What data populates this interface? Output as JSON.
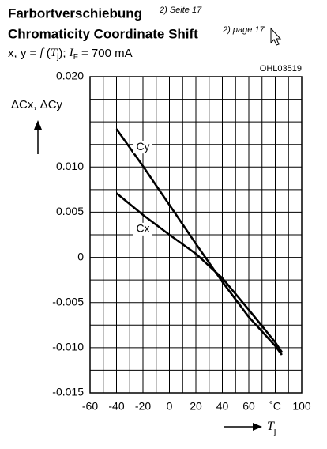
{
  "chart_data": {
    "type": "line",
    "title": [
      "Farbortverschiebung",
      "Chromaticity Coordinate Shift"
    ],
    "title_notes": [
      "2) Seite 17",
      "2) page 17"
    ],
    "subtitle_parts": [
      "x, y = ",
      "f",
      " (",
      "T",
      "j",
      "); ",
      "I",
      "F",
      " = 700 mA"
    ],
    "code": "OHL03519",
    "y_label": "ΔCx, ΔCy",
    "x_label_parts": [
      "T",
      "j"
    ],
    "x": [
      -40,
      -20,
      0,
      20,
      40,
      60,
      80,
      85
    ],
    "series": [
      {
        "name": "Cy",
        "color": "#000000",
        "values": [
          0.0142,
          0.0101,
          0.0058,
          0.0015,
          -0.0027,
          -0.0066,
          -0.0098,
          -0.0108
        ]
      },
      {
        "name": "Cx",
        "color": "#000000",
        "values": [
          0.0071,
          0.0047,
          0.0025,
          0.0004,
          -0.0023,
          -0.0058,
          -0.0094,
          -0.0105
        ]
      }
    ],
    "xlim": [
      -60,
      100
    ],
    "xticks": [
      -60,
      -40,
      -20,
      0,
      20,
      40,
      60,
      {
        "value": 80,
        "label": "˚C"
      },
      100
    ],
    "x_minor_ticks": [
      -50,
      -30,
      -10,
      10,
      30,
      50,
      70,
      90
    ],
    "ylim": [
      -0.015,
      0.02
    ],
    "yticks": [
      {
        "value": 0.02,
        "label": "0.020"
      },
      {
        "value": 0.01,
        "label": "0.010"
      },
      0.005,
      0,
      -0.005,
      {
        "value": -0.01,
        "label": "-0.010"
      },
      -0.015
    ],
    "y_minor_ticks": [
      0.0175,
      0.015,
      0.0125,
      0.0075,
      0.0025,
      -0.0025,
      -0.0075,
      -0.0125
    ],
    "grid": true
  }
}
